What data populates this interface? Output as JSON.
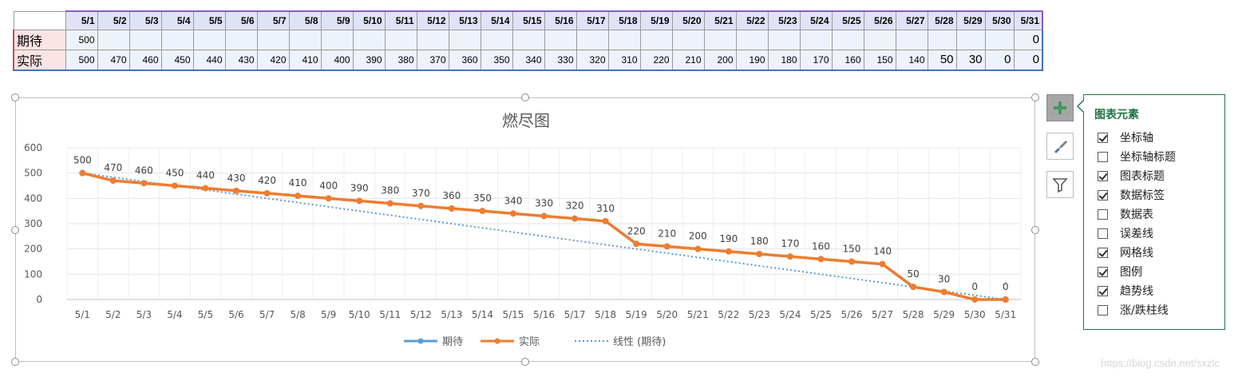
{
  "sheet": {
    "dates": [
      "5/1",
      "5/2",
      "5/3",
      "5/4",
      "5/5",
      "5/6",
      "5/7",
      "5/8",
      "5/9",
      "5/10",
      "5/11",
      "5/12",
      "5/13",
      "5/14",
      "5/15",
      "5/16",
      "5/17",
      "5/18",
      "5/19",
      "5/20",
      "5/21",
      "5/22",
      "5/23",
      "5/24",
      "5/25",
      "5/26",
      "5/27",
      "5/28",
      "5/29",
      "5/30",
      "5/31"
    ],
    "rows": [
      {
        "label": "期待",
        "values": [
          "500",
          "",
          "",
          "",
          "",
          "",
          "",
          "",
          "",
          "",
          "",
          "",
          "",
          "",
          "",
          "",
          "",
          "",
          "",
          "",
          "",
          "",
          "",
          "",
          "",
          "",
          "",
          "",
          "",
          "",
          "0"
        ]
      },
      {
        "label": "实际",
        "values": [
          "500",
          "470",
          "460",
          "450",
          "440",
          "430",
          "420",
          "410",
          "400",
          "390",
          "380",
          "370",
          "360",
          "350",
          "340",
          "330",
          "320",
          "310",
          "220",
          "210",
          "200",
          "190",
          "180",
          "170",
          "160",
          "150",
          "140",
          "50",
          "30",
          "0",
          "0"
        ]
      }
    ]
  },
  "chart_data": {
    "type": "line",
    "title": "燃尽图",
    "categories": [
      "5/1",
      "5/2",
      "5/3",
      "5/4",
      "5/5",
      "5/6",
      "5/7",
      "5/8",
      "5/9",
      "5/10",
      "5/11",
      "5/12",
      "5/13",
      "5/14",
      "5/15",
      "5/16",
      "5/17",
      "5/18",
      "5/19",
      "5/20",
      "5/21",
      "5/22",
      "5/23",
      "5/24",
      "5/25",
      "5/26",
      "5/27",
      "5/28",
      "5/29",
      "5/30",
      "5/31"
    ],
    "ylim": [
      0,
      600
    ],
    "yticks": [
      "0",
      "100",
      "200",
      "300",
      "400",
      "500",
      "600"
    ],
    "grid": true,
    "legend_position": "bottom",
    "series": [
      {
        "name": "期待",
        "values": [
          500,
          null,
          null,
          null,
          null,
          null,
          null,
          null,
          null,
          null,
          null,
          null,
          null,
          null,
          null,
          null,
          null,
          null,
          null,
          null,
          null,
          null,
          null,
          null,
          null,
          null,
          null,
          null,
          null,
          null,
          0
        ],
        "color": "#5b9bd5"
      },
      {
        "name": "实际",
        "values": [
          500,
          470,
          460,
          450,
          440,
          430,
          420,
          410,
          400,
          390,
          380,
          370,
          360,
          350,
          340,
          330,
          320,
          310,
          220,
          210,
          200,
          190,
          180,
          170,
          160,
          150,
          140,
          50,
          30,
          0,
          0
        ],
        "color": "#ed7d31"
      }
    ],
    "trendline": {
      "name": "线性 (期待)",
      "from": 500,
      "to": 0,
      "color": "#5b9bd5"
    },
    "legend": [
      "期待",
      "实际",
      "线性 (期待)"
    ]
  },
  "panel": {
    "title": "图表元素",
    "options": [
      {
        "label": "坐标轴",
        "checked": true
      },
      {
        "label": "坐标轴标题",
        "checked": false
      },
      {
        "label": "图表标题",
        "checked": true
      },
      {
        "label": "数据标签",
        "checked": true
      },
      {
        "label": "数据表",
        "checked": false
      },
      {
        "label": "误差线",
        "checked": false
      },
      {
        "label": "网格线",
        "checked": true
      },
      {
        "label": "图例",
        "checked": true
      },
      {
        "label": "趋势线",
        "checked": true
      },
      {
        "label": "涨/跌柱线",
        "checked": false
      }
    ]
  },
  "icons": {
    "plus": "plus-icon",
    "brush": "brush-icon",
    "filter": "filter-icon"
  },
  "watermark": "https://blog.csdn.net/sxzlc"
}
